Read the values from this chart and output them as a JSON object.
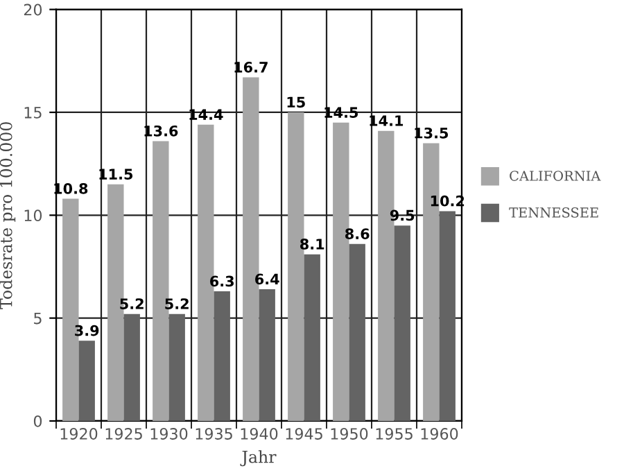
{
  "chart_data": {
    "type": "bar",
    "xlabel": "Jahr",
    "ylabel": "Todesrate pro 100.000",
    "categories": [
      "1920",
      "1925",
      "1930",
      "1935",
      "1940",
      "1945",
      "1950",
      "1955",
      "1960"
    ],
    "series": [
      {
        "name": "CALIFORNIA",
        "color": "#a6a6a6",
        "values": [
          10.8,
          11.5,
          13.6,
          14.4,
          16.7,
          15,
          14.5,
          14.1,
          13.5
        ]
      },
      {
        "name": "TENNESSEE",
        "color": "#646464",
        "values": [
          3.9,
          5.2,
          5.2,
          6.3,
          6.4,
          8.1,
          8.6,
          9.5,
          10.2
        ]
      }
    ],
    "ylim": [
      0,
      20
    ],
    "yticks": [
      0,
      5,
      10,
      15,
      20
    ],
    "grid": true,
    "legend": "right",
    "data_labels": true
  }
}
